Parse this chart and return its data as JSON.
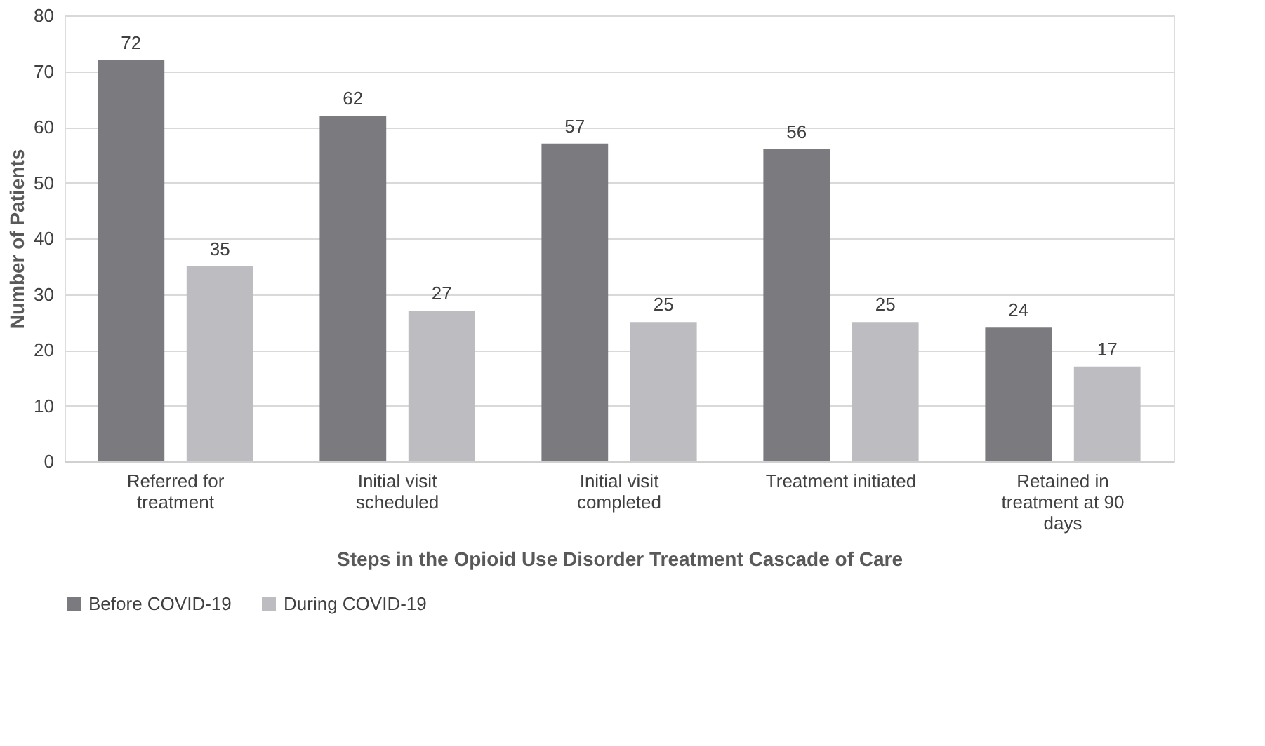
{
  "chart_data": {
    "type": "bar",
    "xlabel": "Steps in the Opioid Use Disorder Treatment Cascade of Care",
    "ylabel": "Number of Patients",
    "categories": [
      "Referred for treatment",
      "Initial visit scheduled",
      "Initial visit completed",
      "Treatment initiated",
      "Retained in treatment at 90 days"
    ],
    "series": [
      {
        "name": "Before COVID-19",
        "color": "#7b7b7f",
        "values": [
          72,
          62,
          57,
          56,
          24
        ]
      },
      {
        "name": "During COVID-19",
        "color": "#bdbdc1",
        "values": [
          35,
          27,
          25,
          25,
          17
        ]
      }
    ],
    "ylim": [
      0,
      80
    ],
    "yticks": [
      0,
      10,
      20,
      30,
      40,
      50,
      60,
      70,
      80
    ],
    "grid": "y",
    "legend": "bottom",
    "data_labels": true
  }
}
